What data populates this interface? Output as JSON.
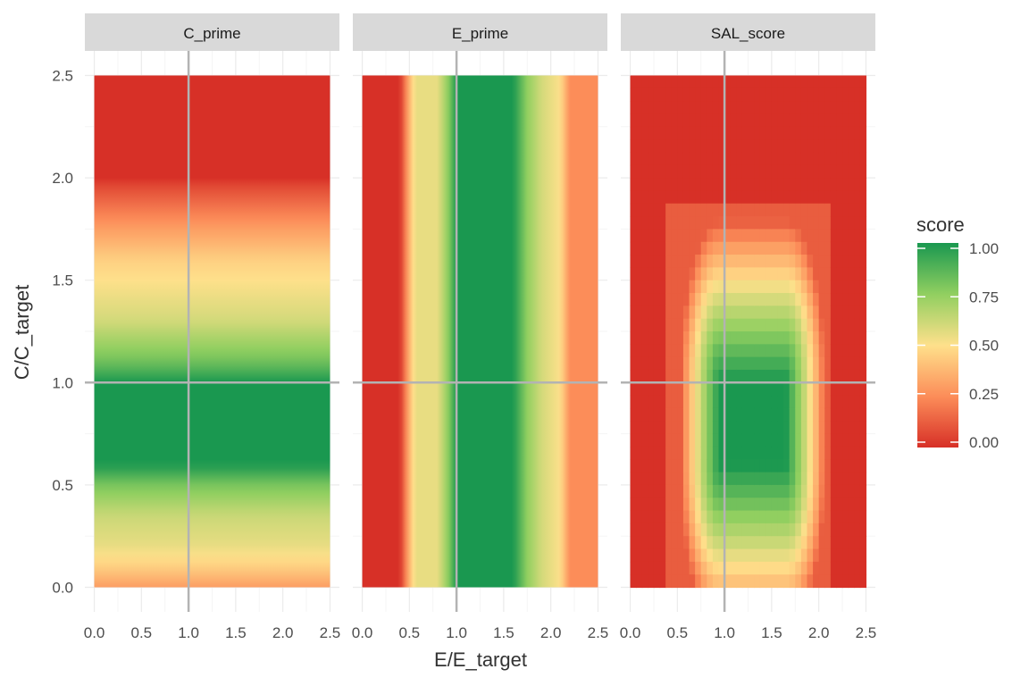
{
  "chart_data": {
    "type": "heatmap",
    "facets": [
      {
        "label": "C_prime",
        "varies_along": "y"
      },
      {
        "label": "E_prime",
        "varies_along": "x"
      },
      {
        "label": "SAL_score",
        "varies_along": "xy"
      }
    ],
    "xlabel": "E/E_target",
    "ylabel": "C/C_target",
    "x_ticks": [
      "0.0",
      "0.5",
      "1.0",
      "1.5",
      "2.0",
      "2.5"
    ],
    "y_ticks": [
      "0.0",
      "0.5",
      "1.0",
      "1.5",
      "2.0",
      "2.5"
    ],
    "xlim": [
      -0.1,
      2.6
    ],
    "ylim": [
      -0.12,
      2.62
    ],
    "data_range": [
      0,
      2.5
    ],
    "reference_lines": {
      "x": 1.0,
      "y": 1.0,
      "color": "#b3b3b3"
    },
    "legend": {
      "title": "score",
      "position": "right",
      "labels": [
        "1.00",
        "0.75",
        "0.50",
        "0.25",
        "0.00"
      ],
      "range": [
        0,
        1
      ]
    },
    "colorscale": [
      {
        "score": 0.0,
        "color": "#d73027"
      },
      {
        "score": 0.25,
        "color": "#fc8d59"
      },
      {
        "score": 0.5,
        "color": "#fee08b"
      },
      {
        "score": 0.75,
        "color": "#91cf60"
      },
      {
        "score": 1.0,
        "color": "#1a9850"
      }
    ],
    "c_profile": [
      {
        "v": 0.0,
        "score": 0.3
      },
      {
        "v": 0.1,
        "score": 0.45
      },
      {
        "v": 0.2,
        "score": 0.55
      },
      {
        "v": 0.35,
        "score": 0.62
      },
      {
        "v": 0.5,
        "score": 0.8
      },
      {
        "v": 0.6,
        "score": 1.0
      },
      {
        "v": 1.0,
        "score": 1.0
      },
      {
        "v": 1.1,
        "score": 0.82
      },
      {
        "v": 1.3,
        "score": 0.6
      },
      {
        "v": 1.6,
        "score": 0.45
      },
      {
        "v": 1.75,
        "score": 0.3
      },
      {
        "v": 1.95,
        "score": 0.08
      },
      {
        "v": 2.0,
        "score": 0.0
      },
      {
        "v": 2.5,
        "score": 0.0
      }
    ],
    "e_profile": [
      {
        "v": 0.0,
        "score": 0.0
      },
      {
        "v": 0.4,
        "score": 0.0
      },
      {
        "v": 0.48,
        "score": 0.3
      },
      {
        "v": 0.56,
        "score": 0.55
      },
      {
        "v": 0.8,
        "score": 0.55
      },
      {
        "v": 0.92,
        "score": 0.78
      },
      {
        "v": 1.0,
        "score": 1.0
      },
      {
        "v": 1.6,
        "score": 1.0
      },
      {
        "v": 1.75,
        "score": 0.75
      },
      {
        "v": 1.9,
        "score": 0.6
      },
      {
        "v": 2.1,
        "score": 0.5
      },
      {
        "v": 2.2,
        "score": 0.25
      },
      {
        "v": 2.5,
        "score": 0.25
      }
    ],
    "sal_ellipse": {
      "core_x": [
        0.95,
        1.65
      ],
      "core_y": [
        0.6,
        1.0
      ],
      "x_radius": 0.45,
      "y_radius": 0.85,
      "outer_x": [
        0.4,
        2.1
      ],
      "outer_y": [
        0.0,
        1.9
      ],
      "outer_score": 0.12
    }
  }
}
